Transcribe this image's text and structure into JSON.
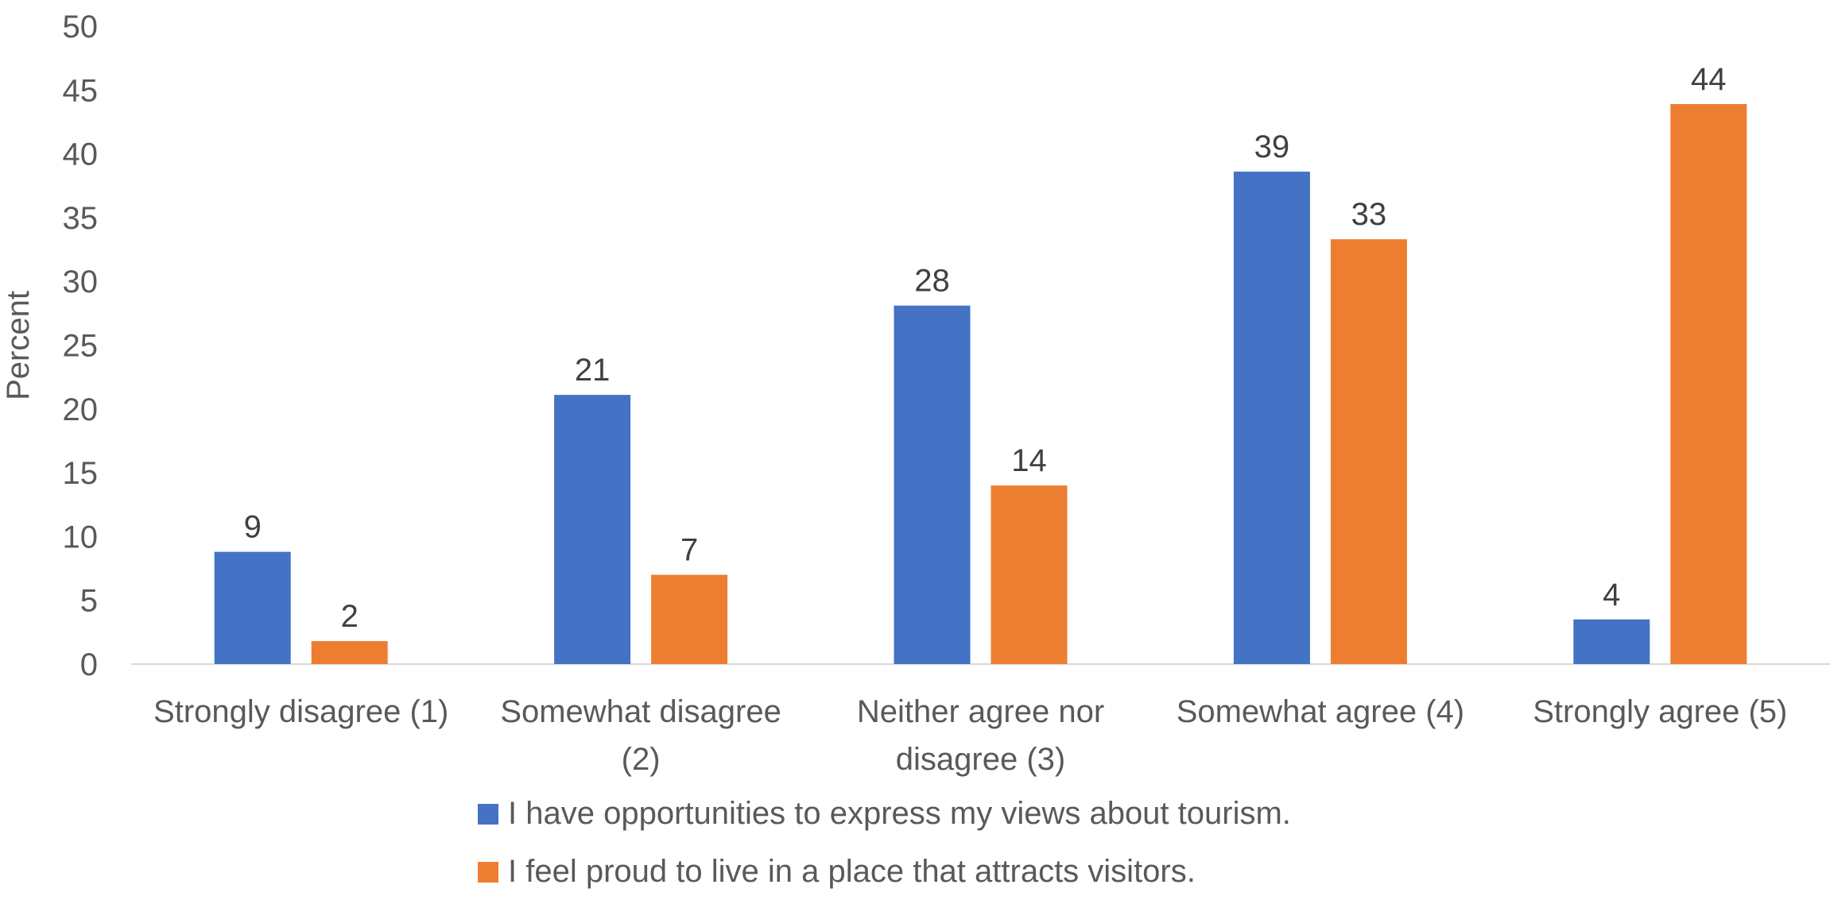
{
  "chart_data": {
    "type": "bar",
    "categories": [
      [
        "Strongly disagree (1)"
      ],
      [
        "Somewhat disagree",
        "(2)"
      ],
      [
        "Neither agree nor",
        "disagree (3)"
      ],
      [
        "Somewhat agree (4)"
      ],
      [
        "Strongly agree (5)"
      ]
    ],
    "series": [
      {
        "name": "I have opportunities to express my views about tourism.",
        "color": "#4472C4",
        "values": [
          8.8,
          21.1,
          28.1,
          38.6,
          3.5
        ],
        "labels": [
          "9",
          "21",
          "28",
          "39",
          "4"
        ]
      },
      {
        "name": "I feel proud to live in a place that attracts visitors.",
        "color": "#ED7D31",
        "values": [
          1.8,
          7.0,
          14.0,
          33.3,
          43.9
        ],
        "labels": [
          "2",
          "7",
          "14",
          "33",
          "44"
        ]
      }
    ],
    "ylabel": "Percent",
    "ylim": [
      0,
      50
    ],
    "yticks": [
      0,
      5,
      10,
      15,
      20,
      25,
      30,
      35,
      40,
      45,
      50
    ],
    "grid": false,
    "legend": "bottom"
  }
}
